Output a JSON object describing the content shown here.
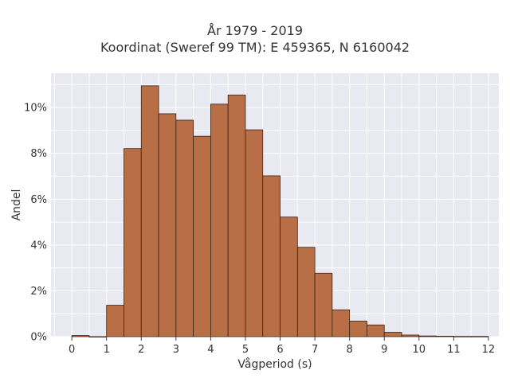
{
  "chart_data": {
    "type": "bar",
    "title": "År 1979 - 2019",
    "subtitle": "Koordinat (Sweref 99 TM): E 459365, N 6160042",
    "xlabel": "Vågperiod (s)",
    "ylabel": "Andel",
    "bin_width": 0.5,
    "bin_starts": [
      0,
      0.5,
      1,
      1.5,
      2,
      2.5,
      3,
      3.5,
      4,
      4.5,
      5,
      5.5,
      6,
      6.5,
      7,
      7.5,
      8,
      8.5,
      9,
      9.5,
      10,
      10.5,
      11,
      11.5
    ],
    "values": [
      0.0005,
      0.0,
      0.0137,
      0.0821,
      0.1095,
      0.0973,
      0.0945,
      0.0875,
      0.1015,
      0.1055,
      0.0903,
      0.0702,
      0.0522,
      0.039,
      0.0277,
      0.0117,
      0.0068,
      0.0051,
      0.0019,
      0.0007,
      0.0003,
      0.0002,
      0.0001,
      0.0001
    ],
    "xlim": [
      -0.6,
      12.3
    ],
    "ylim": [
      0,
      0.115
    ],
    "xticks": [
      0,
      1,
      2,
      3,
      4,
      5,
      6,
      7,
      8,
      9,
      10,
      11,
      12
    ],
    "xtick_labels": [
      "0",
      "1",
      "2",
      "3",
      "4",
      "5",
      "6",
      "7",
      "8",
      "9",
      "10",
      "11",
      "12"
    ],
    "yticks": [
      0,
      0.02,
      0.04,
      0.06,
      0.08,
      0.1
    ],
    "ytick_labels": [
      "0%",
      "2%",
      "4%",
      "6%",
      "8%",
      "10%"
    ],
    "bar_color": "#b86f46",
    "bar_edge_color": "#3a2214",
    "plot_bg_color": "#e9e9f1",
    "grid": true
  }
}
